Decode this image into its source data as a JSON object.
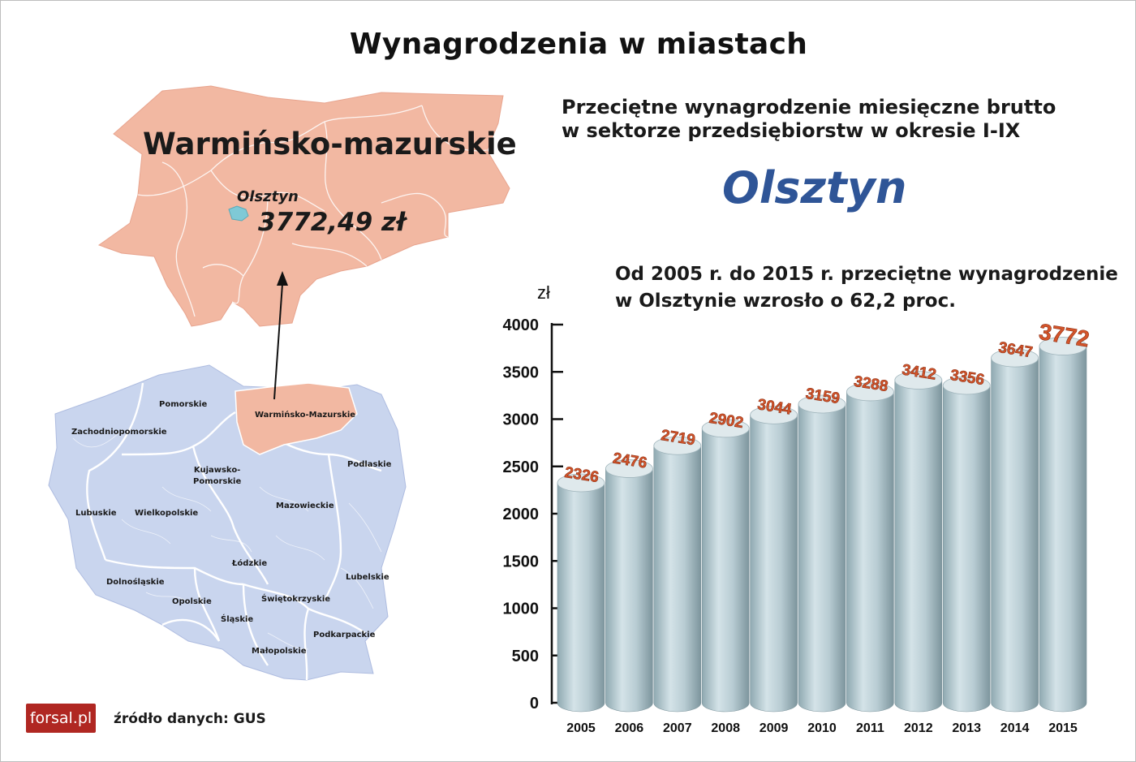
{
  "title": "Wynagrodzenia w miastach",
  "subtitle": "Przeciętne wynagrodzenie miesięczne brutto\nw sektorze przedsiębiorstw w okresie I-IX",
  "city_heading": "Olsztyn",
  "growth_note": "Od 2005 r. do 2015 r. przeciętne wynagrodzenie\nw Olsztynie wzrosło o 62,2 proc.",
  "map": {
    "region_title": "Warmińsko-mazurskie",
    "city_name": "Olsztyn",
    "city_salary": "3772,49 zł",
    "voivodeships": [
      "Pomorskie",
      "Warmińsko-Mazurskie",
      "Zachodniopomorskie",
      "Podlaskie",
      "Kujawsko-\nPomorskie",
      "Mazowieckie",
      "Lubuskie",
      "Wielkopolskie",
      "Łódzkie",
      "Lubelskie",
      "Dolnośląskie",
      "Opolskie",
      "Świętokrzyskie",
      "Śląskie",
      "Podkarpackie",
      "Małopolskie"
    ],
    "colors": {
      "highlight": "#f2b8a2",
      "other": "#c9d5ee",
      "city": "#7fc9d6"
    }
  },
  "footer": {
    "logo": "forsal.pl",
    "source": "źródło danych: GUS"
  },
  "chart_data": {
    "type": "bar",
    "ylabel": "zł",
    "ylim": [
      0,
      4000
    ],
    "yticks": [
      0,
      500,
      1000,
      1500,
      2000,
      2500,
      3000,
      3500,
      4000
    ],
    "categories": [
      "2005",
      "2006",
      "2007",
      "2008",
      "2009",
      "2010",
      "2011",
      "2012",
      "2013",
      "2014",
      "2015"
    ],
    "values": [
      2326,
      2476,
      2719,
      2902,
      3044,
      3159,
      3288,
      3412,
      3356,
      3647,
      3772
    ],
    "bar_color": "#b8ccd3",
    "label_color": "#d4552b"
  }
}
